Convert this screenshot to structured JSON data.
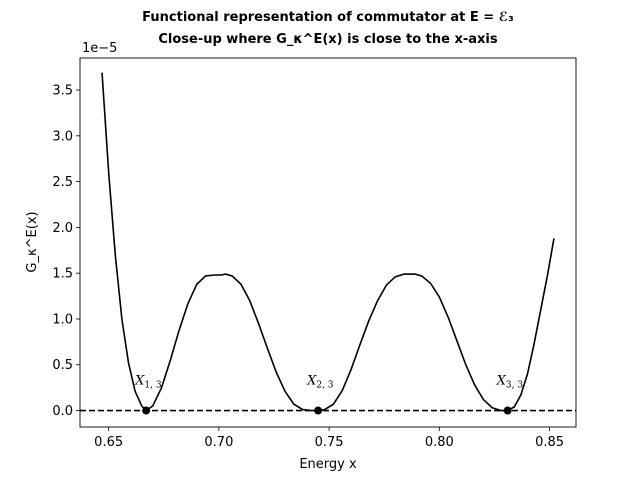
{
  "chart_data": {
    "type": "line",
    "title_line1": "Functional representation of commutator at E = ℰ₃",
    "title_line2": "Close-up where G_κ^E(x) is close to the x-axis",
    "xlabel": "Energy x",
    "ylabel": "G_κ^E(x)",
    "y_scale_label": "1e−5",
    "xlim": [
      0.637,
      0.862
    ],
    "ylim": [
      -0.18,
      3.85
    ],
    "xticks": [
      0.65,
      0.7,
      0.75,
      0.8,
      0.85
    ],
    "xtick_labels": [
      "0.65",
      "0.70",
      "0.75",
      "0.80",
      "0.85"
    ],
    "yticks": [
      0.0,
      0.5,
      1.0,
      1.5,
      2.0,
      2.5,
      3.0,
      3.5
    ],
    "ytick_labels": [
      "0.0",
      "0.5",
      "1.0",
      "1.5",
      "2.0",
      "2.5",
      "3.0",
      "3.5"
    ],
    "series": [
      {
        "color": "#000000",
        "x": [
          0.647,
          0.65,
          0.653,
          0.656,
          0.659,
          0.662,
          0.665,
          0.667,
          0.67,
          0.674,
          0.678,
          0.682,
          0.686,
          0.69,
          0.694,
          0.698,
          0.701,
          0.703,
          0.706,
          0.71,
          0.714,
          0.718,
          0.722,
          0.726,
          0.73,
          0.734,
          0.738,
          0.742,
          0.745,
          0.748,
          0.752,
          0.756,
          0.76,
          0.764,
          0.768,
          0.772,
          0.776,
          0.78,
          0.784,
          0.787,
          0.789,
          0.792,
          0.796,
          0.8,
          0.804,
          0.808,
          0.812,
          0.816,
          0.82,
          0.824,
          0.828,
          0.831,
          0.834,
          0.837,
          0.84,
          0.843,
          0.846,
          0.849,
          0.852
        ],
        "y": [
          3.69,
          2.6,
          1.7,
          1.0,
          0.52,
          0.21,
          0.05,
          0.0,
          0.05,
          0.25,
          0.55,
          0.88,
          1.17,
          1.38,
          1.47,
          1.48,
          1.48,
          1.49,
          1.47,
          1.38,
          1.2,
          0.95,
          0.68,
          0.42,
          0.21,
          0.07,
          0.01,
          0.0,
          0.0,
          0.01,
          0.07,
          0.22,
          0.45,
          0.72,
          0.98,
          1.2,
          1.37,
          1.46,
          1.49,
          1.49,
          1.49,
          1.47,
          1.39,
          1.24,
          1.02,
          0.76,
          0.5,
          0.28,
          0.12,
          0.03,
          0.0,
          0.0,
          0.04,
          0.17,
          0.4,
          0.73,
          1.1,
          1.47,
          1.88
        ]
      },
      {
        "style": "dashed",
        "color": "#000000",
        "x": [
          0.637,
          0.862
        ],
        "y": [
          0.0,
          0.0
        ]
      }
    ],
    "points": [
      {
        "x": 0.667,
        "y": 0.0,
        "label": "X",
        "sub": "1, 3"
      },
      {
        "x": 0.745,
        "y": 0.0,
        "label": "X",
        "sub": "2, 3"
      },
      {
        "x": 0.831,
        "y": 0.0,
        "label": "X",
        "sub": "3, 3"
      }
    ],
    "grid": false,
    "legend": "none"
  }
}
